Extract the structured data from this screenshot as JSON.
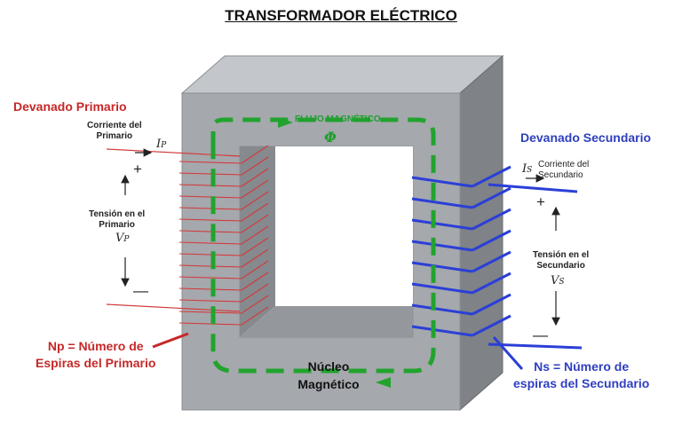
{
  "title": "TRANSFORMADOR ELÉCTRICO",
  "primary": {
    "heading": "Devanado Primario",
    "current_label": [
      "Corriente del",
      "Primario"
    ],
    "current_symbol": "I",
    "current_subscript": "P",
    "voltage_label": [
      "Tensión en el",
      "Primario"
    ],
    "voltage_symbol": "V",
    "voltage_subscript": "P",
    "turns_label": [
      "Np = Número de",
      "Espiras del Primario"
    ],
    "plus": "+",
    "minus": "—"
  },
  "secondary": {
    "heading": "Devanado Secundario",
    "current_label": [
      "Corriente del",
      "Secundario"
    ],
    "current_symbol": "I",
    "current_subscript": "S",
    "voltage_label": [
      "Tensión en el",
      "Secundario"
    ],
    "voltage_symbol": "V",
    "voltage_subscript": "S",
    "turns_label": [
      "Ns = Número de",
      "espiras del Secundario"
    ],
    "plus": "+",
    "minus": "—"
  },
  "flux": {
    "label": "FLUJO MAGNÉTICO",
    "symbol": "Φ"
  },
  "core": {
    "label": [
      "Núcleo",
      "Magnético"
    ]
  },
  "colors": {
    "primary": "#c62828",
    "secondary": "#2f3fbf",
    "flux": "#1f9e2f",
    "core_front": "#a5a8ad",
    "core_top": "#c3c6ca",
    "core_side": "#7f8287"
  }
}
